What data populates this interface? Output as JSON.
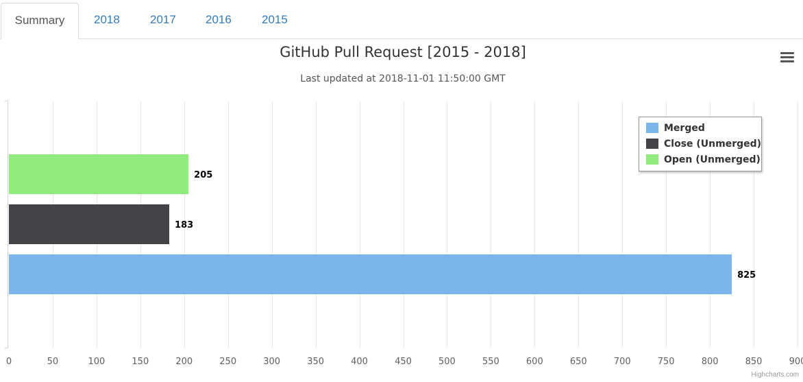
{
  "tabs": [
    {
      "label": "Summary",
      "active": true
    },
    {
      "label": "2018",
      "active": false
    },
    {
      "label": "2017",
      "active": false
    },
    {
      "label": "2016",
      "active": false
    },
    {
      "label": "2015",
      "active": false
    }
  ],
  "menu": {
    "icon": "hamburger-menu-icon"
  },
  "credits": "Highcharts.com",
  "chart_data": {
    "type": "bar",
    "orientation": "horizontal",
    "title": "GitHub Pull Request [2015 - 2018]",
    "subtitle": "Last updated at 2018-11-01 11:50:00 GMT",
    "xlim": [
      0,
      900
    ],
    "x_ticks": [
      0,
      50,
      100,
      150,
      200,
      250,
      300,
      350,
      400,
      450,
      500,
      550,
      600,
      650,
      700,
      750,
      800,
      850,
      900
    ],
    "grid": true,
    "legend_position": "top-right",
    "series": [
      {
        "name": "Merged",
        "value": 825,
        "color": "#7cb5ec"
      },
      {
        "name": "Close (Unmerged)",
        "value": 183,
        "color": "#434348"
      },
      {
        "name": "Open (Unmerged)",
        "value": 205,
        "color": "#90ed7d"
      }
    ]
  }
}
